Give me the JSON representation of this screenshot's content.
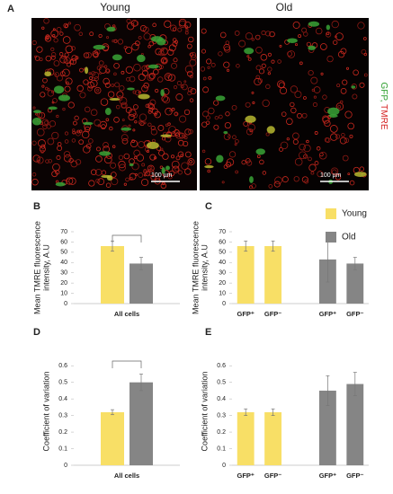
{
  "figure": {
    "label": "A",
    "images": [
      {
        "title": "Young",
        "scale_bar": "100 µm"
      },
      {
        "title": "Old",
        "scale_bar": "100 µm"
      }
    ],
    "stain_1": "GFP",
    "stain_separator": ",",
    "stain_2": "TMRE"
  },
  "chart_data": [
    {
      "type": "bar",
      "panel": "B",
      "ylabel": [
        "Mean TMRE fluorescence",
        "intensity, A.U"
      ],
      "categories": [
        "All cells"
      ],
      "ylim": [
        0,
        70
      ],
      "yticks": [
        0,
        10,
        20,
        30,
        40,
        50,
        60,
        70
      ],
      "series": [
        {
          "name": "Young",
          "color": "#f8df66",
          "values": [
            56
          ],
          "errors": [
            5
          ]
        },
        {
          "name": "Old",
          "color": "#858585",
          "values": [
            39
          ],
          "errors": [
            6
          ]
        }
      ],
      "significance_bracket": true,
      "legend": false
    },
    {
      "type": "bar",
      "panel": "C",
      "ylabel": [
        "Mean TMRE fluorescence",
        "intensity, A.U"
      ],
      "categories": [
        "GFP⁺",
        "GFP⁻",
        null,
        "GFP⁺",
        "GFP⁻"
      ],
      "ylim": [
        0,
        70
      ],
      "yticks": [
        0,
        10,
        20,
        30,
        40,
        50,
        60,
        70
      ],
      "series": [
        {
          "name": "Young",
          "color": "#f8df66",
          "values": [
            56,
            56,
            null,
            null,
            null
          ],
          "errors": [
            5,
            5,
            null,
            null,
            null
          ]
        },
        {
          "name": "Old",
          "color": "#858585",
          "values": [
            null,
            null,
            null,
            43,
            39
          ],
          "errors": [
            null,
            null,
            null,
            22,
            6
          ]
        }
      ],
      "significance_bracket": false,
      "legend": true
    },
    {
      "type": "bar",
      "panel": "D",
      "ylabel": [
        "Coefficient of variation"
      ],
      "categories": [
        "All cells"
      ],
      "ylim": [
        0,
        0.65
      ],
      "yticks": [
        0,
        0.1,
        0.2,
        0.3,
        0.4,
        0.5,
        0.6
      ],
      "series": [
        {
          "name": "Young",
          "color": "#f8df66",
          "values": [
            0.32
          ],
          "errors": [
            0.015
          ]
        },
        {
          "name": "Old",
          "color": "#858585",
          "values": [
            0.5
          ],
          "errors": [
            0.05
          ]
        }
      ],
      "significance_bracket": true,
      "legend": false
    },
    {
      "type": "bar",
      "panel": "E",
      "ylabel": [
        "Coefficient of variation"
      ],
      "categories": [
        "GFP⁺",
        "GFP⁻",
        null,
        "GFP⁺",
        "GFP⁻"
      ],
      "ylim": [
        0,
        0.65
      ],
      "yticks": [
        0,
        0.1,
        0.2,
        0.3,
        0.4,
        0.5,
        0.6
      ],
      "series": [
        {
          "name": "Young",
          "color": "#f8df66",
          "values": [
            0.32,
            0.32,
            null,
            null,
            null
          ],
          "errors": [
            0.02,
            0.02,
            null,
            null,
            null
          ]
        },
        {
          "name": "Old",
          "color": "#858585",
          "values": [
            null,
            null,
            null,
            0.45,
            0.49
          ],
          "errors": [
            null,
            null,
            null,
            0.09,
            0.07
          ]
        }
      ],
      "significance_bracket": false,
      "legend": false
    }
  ]
}
